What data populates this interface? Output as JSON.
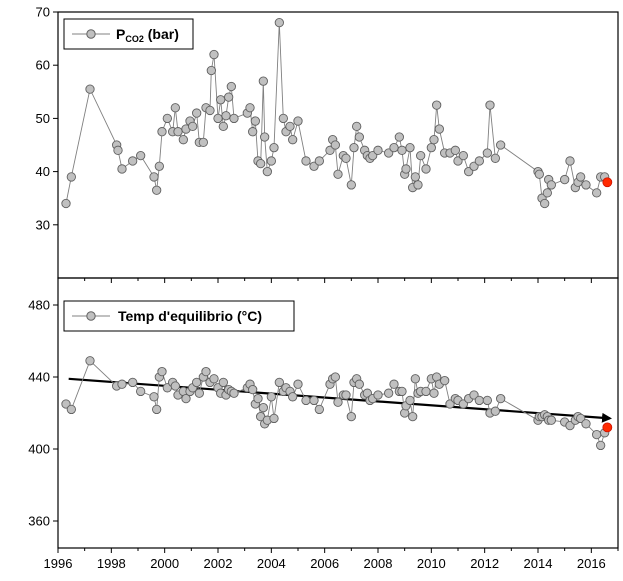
{
  "chart_data": [
    {
      "type": "line",
      "legend": {
        "label": "P",
        "subscript": "CO2",
        "suffix": " (bar)",
        "placement": "top-left"
      },
      "xlim": [
        1996,
        2017
      ],
      "ylim": [
        20,
        70
      ],
      "yticks": [
        30,
        40,
        50,
        60,
        70
      ],
      "xticks": [
        1996,
        1998,
        2000,
        2002,
        2004,
        2006,
        2008,
        2010,
        2012,
        2014,
        2016
      ],
      "grid": false,
      "colors": {
        "marker_fill": "#c0c0c0",
        "marker_stroke": "#606060",
        "line": "#808080",
        "highlight": "#ff2a00"
      },
      "series": [
        {
          "x": [
            1996.3,
            1996.5,
            1997.2,
            1998.2,
            1998.25,
            1998.4,
            1998.8,
            1999.1,
            1999.6,
            1999.7,
            1999.8,
            1999.9,
            2000.1,
            2000.3,
            2000.4,
            2000.5,
            2000.7,
            2000.8,
            2000.95,
            2001.05,
            2001.2,
            2001.3,
            2001.45,
            2001.55,
            2001.7,
            2001.75,
            2001.85,
            2002.0,
            2002.1,
            2002.2,
            2002.3,
            2002.4,
            2002.5,
            2002.6,
            2003.1,
            2003.2,
            2003.3,
            2003.4,
            2003.5,
            2003.6,
            2003.7,
            2003.75,
            2003.85,
            2004.0,
            2004.1,
            2004.3,
            2004.45,
            2004.55,
            2004.7,
            2004.8,
            2005.0,
            2005.3,
            2005.6,
            2005.8,
            2006.2,
            2006.3,
            2006.4,
            2006.5,
            2006.7,
            2006.8,
            2007.0,
            2007.1,
            2007.2,
            2007.3,
            2007.5,
            2007.6,
            2007.7,
            2007.8,
            2008.0,
            2008.4,
            2008.6,
            2008.8,
            2008.9,
            2009.0,
            2009.05,
            2009.2,
            2009.3,
            2009.4,
            2009.5,
            2009.6,
            2009.8,
            2010.0,
            2010.1,
            2010.2,
            2010.3,
            2010.5,
            2010.7,
            2010.9,
            2011.0,
            2011.2,
            2011.4,
            2011.6,
            2011.8,
            2012.1,
            2012.2,
            2012.4,
            2012.6,
            2014.0,
            2014.05,
            2014.15,
            2014.25,
            2014.35,
            2014.4,
            2014.5,
            2015.0,
            2015.2,
            2015.4,
            2015.5,
            2015.6,
            2015.8,
            2016.2,
            2016.35,
            2016.5
          ],
          "y": [
            34,
            39,
            55.5,
            45,
            44,
            40.5,
            42,
            43,
            39,
            36.5,
            41,
            47.5,
            50,
            47.5,
            52,
            47.5,
            46,
            48,
            49.5,
            48.5,
            51,
            45.5,
            45.5,
            52,
            51.5,
            59,
            62,
            50,
            53.5,
            48.5,
            50.5,
            54,
            56,
            50,
            51,
            52,
            47.5,
            49.5,
            42,
            41.5,
            57,
            46.5,
            40,
            42,
            44.5,
            68,
            50,
            47.5,
            48.5,
            46,
            49.5,
            42,
            41,
            42,
            44,
            46,
            45,
            39.5,
            43,
            42.5,
            37.5,
            44.5,
            48.5,
            46.5,
            44,
            43,
            42.5,
            43,
            44,
            43.5,
            44.5,
            46.5,
            44,
            39.5,
            40.5,
            44.5,
            37,
            39,
            37.5,
            43,
            40.5,
            44.5,
            46,
            52.5,
            48,
            43.5,
            43.5,
            44,
            42,
            43,
            40,
            41,
            42,
            43.5,
            52.5,
            42.5,
            45,
            40,
            39.5,
            35,
            34,
            36,
            38.5,
            37.5,
            38.5,
            42,
            37,
            38,
            39,
            37.5,
            36,
            39,
            39
          ]
        },
        {
          "x": [
            2016.6
          ],
          "y": [
            38
          ],
          "highlight": true
        }
      ]
    },
    {
      "type": "line",
      "legend": {
        "label": "Temp d'equilibrio (°C)",
        "placement": "top-left"
      },
      "xlim": [
        1996,
        2017
      ],
      "ylim": [
        345,
        495
      ],
      "yticks": [
        360,
        400,
        440,
        480
      ],
      "xticks": [
        1996,
        1998,
        2000,
        2002,
        2004,
        2006,
        2008,
        2010,
        2012,
        2014,
        2016
      ],
      "grid": false,
      "trend_arrow": {
        "x": [
          1996.4,
          2016.7
        ],
        "y": [
          439,
          417
        ],
        "color": "#000000"
      },
      "series": [
        {
          "x": [
            1996.3,
            1996.5,
            1997.2,
            1998.2,
            1998.4,
            1998.8,
            1999.1,
            1999.6,
            1999.7,
            1999.8,
            1999.9,
            2000.1,
            2000.3,
            2000.4,
            2000.5,
            2000.7,
            2000.8,
            2000.95,
            2001.05,
            2001.2,
            2001.3,
            2001.45,
            2001.55,
            2001.7,
            2001.85,
            2002.0,
            2002.1,
            2002.2,
            2002.3,
            2002.4,
            2002.5,
            2002.6,
            2003.1,
            2003.2,
            2003.3,
            2003.4,
            2003.5,
            2003.6,
            2003.7,
            2003.75,
            2003.85,
            2004.0,
            2004.1,
            2004.3,
            2004.45,
            2004.55,
            2004.7,
            2004.8,
            2005.0,
            2005.3,
            2005.6,
            2005.8,
            2006.2,
            2006.3,
            2006.4,
            2006.5,
            2006.7,
            2006.8,
            2007.0,
            2007.1,
            2007.2,
            2007.3,
            2007.5,
            2007.6,
            2007.7,
            2007.8,
            2008.0,
            2008.4,
            2008.6,
            2008.8,
            2008.9,
            2009.0,
            2009.05,
            2009.2,
            2009.3,
            2009.4,
            2009.5,
            2009.6,
            2009.8,
            2010.0,
            2010.1,
            2010.2,
            2010.3,
            2010.5,
            2010.7,
            2010.9,
            2011.0,
            2011.2,
            2011.4,
            2011.6,
            2011.8,
            2012.1,
            2012.2,
            2012.4,
            2012.6,
            2014.0,
            2014.05,
            2014.15,
            2014.25,
            2014.35,
            2014.4,
            2014.5,
            2015.0,
            2015.2,
            2015.4,
            2015.5,
            2015.6,
            2015.8,
            2016.2,
            2016.35,
            2016.5
          ],
          "y": [
            425,
            422,
            449,
            435,
            436,
            437,
            432,
            429,
            422,
            440,
            443,
            434,
            437,
            435,
            430,
            432,
            428,
            432,
            434,
            437,
            431,
            440,
            443,
            437,
            439,
            434,
            431,
            437,
            430,
            433,
            432,
            431,
            434,
            436,
            433,
            425,
            428,
            418,
            423,
            414,
            416,
            429,
            417,
            437,
            432,
            434,
            432,
            429,
            436,
            427,
            427,
            422,
            436,
            439,
            440,
            426,
            430,
            430,
            418,
            437,
            439,
            436,
            430,
            431,
            427,
            428,
            430,
            431,
            436,
            432,
            432,
            420,
            424,
            427,
            418,
            439,
            431,
            432,
            432,
            439,
            431,
            440,
            436,
            438,
            425,
            428,
            427,
            425,
            428,
            430,
            427,
            427,
            420,
            421,
            428,
            416,
            418,
            418,
            419,
            418,
            416,
            416,
            415,
            413,
            416,
            418,
            417,
            414,
            408,
            402,
            409
          ]
        },
        {
          "x": [
            2016.6
          ],
          "y": [
            412
          ],
          "highlight": true
        }
      ]
    }
  ]
}
